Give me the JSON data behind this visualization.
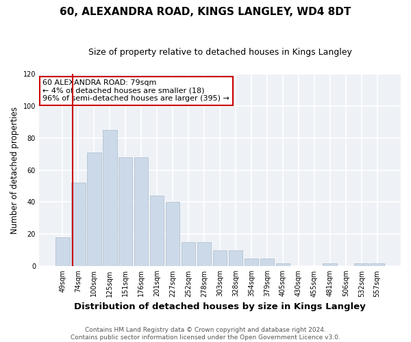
{
  "title": "60, ALEXANDRA ROAD, KINGS LANGLEY, WD4 8DT",
  "subtitle": "Size of property relative to detached houses in Kings Langley",
  "xlabel": "Distribution of detached houses by size in Kings Langley",
  "ylabel": "Number of detached properties",
  "footer_line1": "Contains HM Land Registry data © Crown copyright and database right 2024.",
  "footer_line2": "Contains public sector information licensed under the Open Government Licence v3.0.",
  "annotation_title": "60 ALEXANDRA ROAD: 79sqm",
  "annotation_line2": "← 4% of detached houses are smaller (18)",
  "annotation_line3": "96% of semi-detached houses are larger (395) →",
  "bar_labels": [
    "49sqm",
    "74sqm",
    "100sqm",
    "125sqm",
    "151sqm",
    "176sqm",
    "201sqm",
    "227sqm",
    "252sqm",
    "278sqm",
    "303sqm",
    "328sqm",
    "354sqm",
    "379sqm",
    "405sqm",
    "430sqm",
    "455sqm",
    "481sqm",
    "506sqm",
    "532sqm",
    "557sqm"
  ],
  "bar_values": [
    18,
    52,
    71,
    85,
    68,
    68,
    44,
    40,
    15,
    15,
    10,
    10,
    5,
    5,
    2,
    0,
    0,
    2,
    0,
    2,
    2
  ],
  "bar_color": "#ccd9e8",
  "bar_edge_color": "#aabbcc",
  "vline_color": "#cc0000",
  "vline_x": 0.65,
  "ylim": [
    0,
    120
  ],
  "yticks": [
    0,
    20,
    40,
    60,
    80,
    100,
    120
  ],
  "bg_color": "#ffffff",
  "plot_bg_color": "#eef2f7",
  "grid_color": "#ffffff",
  "annotation_box_facecolor": "#ffffff",
  "annotation_box_edgecolor": "#cc0000",
  "title_fontsize": 11,
  "subtitle_fontsize": 9,
  "xlabel_fontsize": 9.5,
  "ylabel_fontsize": 8.5,
  "tick_fontsize": 7,
  "footer_fontsize": 6.5,
  "annotation_fontsize": 8
}
